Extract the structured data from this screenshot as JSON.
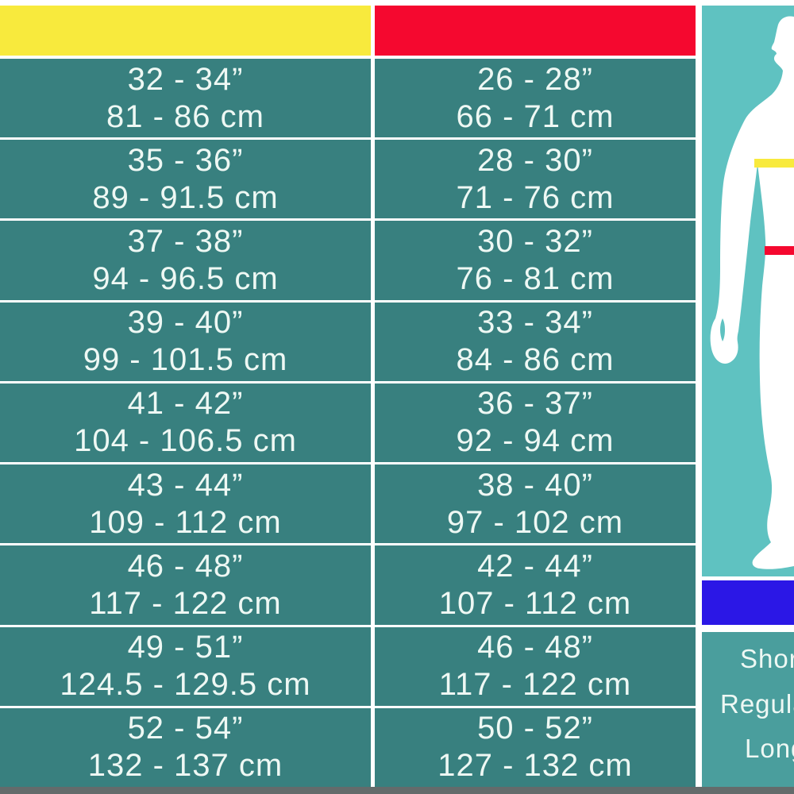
{
  "chart_data": {
    "type": "table",
    "title": "",
    "columns": [
      {
        "name": "chest",
        "header_label": "",
        "header_color": "#f8ea3d"
      },
      {
        "name": "waist",
        "header_label": "",
        "header_color": "#f5082f"
      }
    ],
    "rows": [
      {
        "chest_inches": "32 - 34”",
        "chest_cm": "81 - 86 cm",
        "waist_inches": "26 - 28”",
        "waist_cm": "66 - 71 cm"
      },
      {
        "chest_inches": "35 - 36”",
        "chest_cm": "89 - 91.5 cm",
        "waist_inches": "28 - 30”",
        "waist_cm": "71 - 76 cm"
      },
      {
        "chest_inches": "37 - 38”",
        "chest_cm": "94 - 96.5 cm",
        "waist_inches": "30 - 32”",
        "waist_cm": "76 - 81 cm"
      },
      {
        "chest_inches": "39 - 40”",
        "chest_cm": "99 - 101.5 cm",
        "waist_inches": "33 - 34”",
        "waist_cm": "84 - 86 cm"
      },
      {
        "chest_inches": "41 - 42”",
        "chest_cm": "104 - 106.5 cm",
        "waist_inches": "36 - 37”",
        "waist_cm": "92 - 94 cm"
      },
      {
        "chest_inches": "43 - 44”",
        "chest_cm": "109 - 112 cm",
        "waist_inches": "38 - 40”",
        "waist_cm": "97 - 102 cm"
      },
      {
        "chest_inches": "46 - 48”",
        "chest_cm": "117 - 122 cm",
        "waist_inches": "42 - 44”",
        "waist_cm": "107 - 112 cm"
      },
      {
        "chest_inches": "49 - 51”",
        "chest_cm": "124.5 - 129.5 cm",
        "waist_inches": "46 - 48”",
        "waist_cm": "117 - 122 cm"
      },
      {
        "chest_inches": "52 - 54”",
        "chest_cm": "132 - 137 cm",
        "waist_inches": "50 - 52”",
        "waist_cm": "127 - 132 cm"
      }
    ]
  },
  "figure_panel": {
    "background": "#5fc2c1",
    "silhouette_color": "#ffffff",
    "chest_line_color": "#f8ea3d",
    "waist_line_color": "#f5082f"
  },
  "inseam_bar_color": "#2b17e6",
  "fit_panel": {
    "background": "#4a9e9d",
    "options": [
      "Short",
      "Regular",
      "Long"
    ]
  },
  "colors": {
    "table_cell": "#38807f",
    "text": "#eef8f4",
    "divider": "#ffffff",
    "page_bg": "#ffffff",
    "bottom_edge": "rgba(5,16,16,0.62)"
  }
}
